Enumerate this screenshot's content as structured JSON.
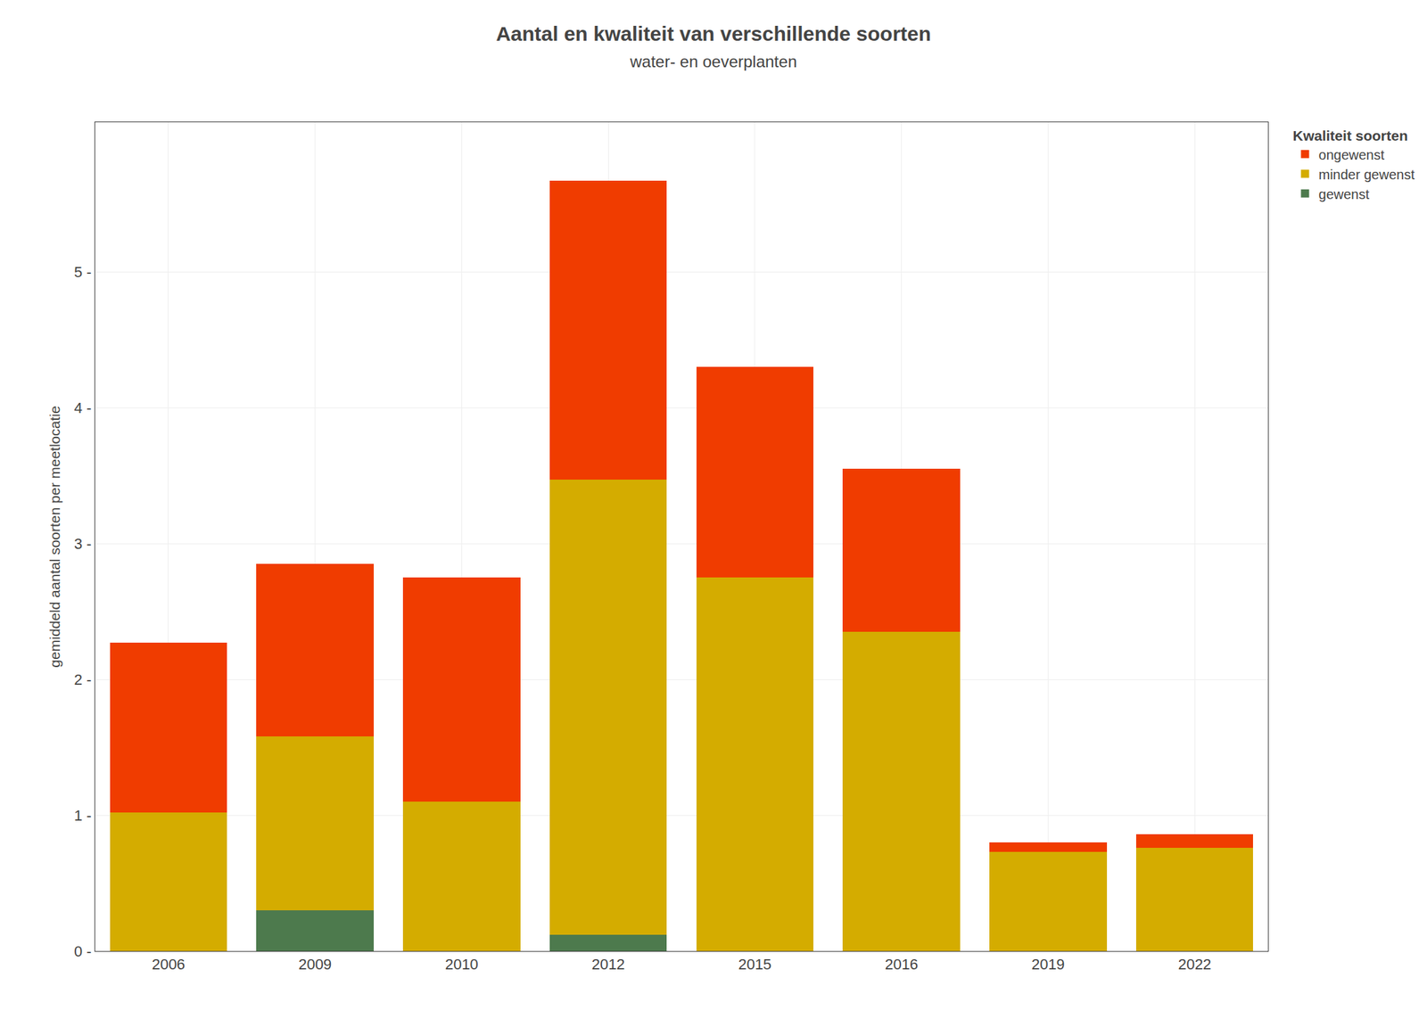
{
  "chart_data": {
    "type": "bar",
    "stacked": true,
    "title": "Aantal en kwaliteit van verschillende soorten",
    "subtitle": "water- en oeverplanten",
    "ylabel": "gemiddeld aantal soorten per meetlocatie",
    "legend_title": "Kwaliteit soorten",
    "categories": [
      "2006",
      "2009",
      "2010",
      "2012",
      "2015",
      "2016",
      "2019",
      "2022"
    ],
    "series": [
      {
        "name": "gewenst",
        "color": "#4d7a4d",
        "values": [
          0.0,
          0.3,
          0.0,
          0.12,
          0.0,
          0.0,
          0.0,
          0.0
        ]
      },
      {
        "name": "minder gewenst",
        "color": "#d4ac00",
        "values": [
          1.02,
          1.28,
          1.1,
          3.35,
          2.75,
          2.35,
          0.73,
          0.76
        ]
      },
      {
        "name": "ongewenst",
        "color": "#f03c00",
        "values": [
          1.25,
          1.27,
          1.65,
          2.2,
          1.55,
          1.2,
          0.07,
          0.1
        ]
      }
    ],
    "ylim": [
      0,
      6.1
    ],
    "yticks": [
      {
        "value": 0,
        "label": "0 -"
      },
      {
        "value": 1,
        "label": "1 -"
      },
      {
        "value": 2,
        "label": "2 -"
      },
      {
        "value": 3,
        "label": "3 -"
      },
      {
        "value": 4,
        "label": "4 -"
      },
      {
        "value": 5,
        "label": "5 -"
      }
    ],
    "grid": true,
    "legend": "right"
  }
}
